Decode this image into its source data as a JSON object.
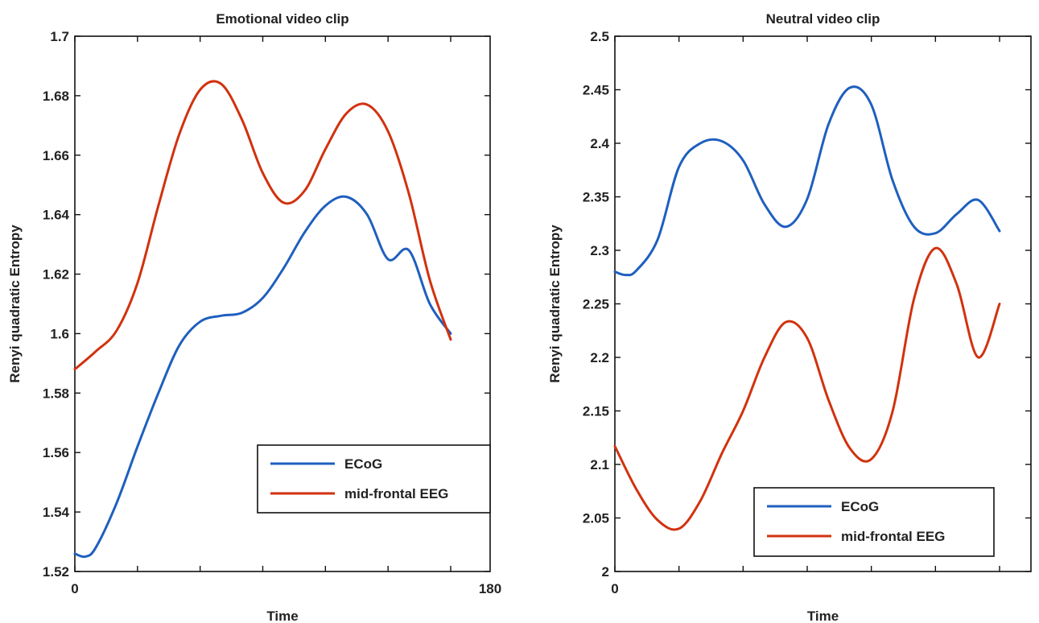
{
  "chart_data": [
    {
      "type": "line",
      "title": "Emotional video clip",
      "xlabel": "Time",
      "ylabel": "Renyi quadratic Entropy",
      "xlim": [
        0,
        180
      ],
      "ylim": [
        1.52,
        1.7
      ],
      "xticks": [
        0,
        180
      ],
      "xtick_labels": [
        "0",
        "180"
      ],
      "minor_xticks": [
        0,
        30,
        60,
        90,
        120,
        150,
        180
      ],
      "yticks": [
        1.52,
        1.54,
        1.56,
        1.58,
        1.6,
        1.62,
        1.64,
        1.66,
        1.68,
        1.7
      ],
      "ytick_labels": [
        "1.52",
        "1.54",
        "1.56",
        "1.58",
        "1.6",
        "1.62",
        "1.64",
        "1.66",
        "1.68",
        "1.7"
      ],
      "legend_position": "bottom-right",
      "series": [
        {
          "name": "ECoG",
          "color": "#1f5fbf",
          "x": [
            0,
            5,
            10,
            20,
            30,
            40,
            50,
            60,
            70,
            80,
            90,
            100,
            110,
            120,
            130,
            140,
            150,
            160,
            170,
            180
          ],
          "y": [
            1.526,
            1.525,
            1.528,
            1.543,
            1.562,
            1.58,
            1.596,
            1.604,
            1.606,
            1.607,
            1.612,
            1.622,
            1.634,
            1.643,
            1.646,
            1.64,
            1.625,
            1.628,
            1.61,
            1.6
          ]
        },
        {
          "name": "mid-frontal EEG",
          "color": "#d1320f",
          "x": [
            0,
            10,
            20,
            30,
            40,
            50,
            60,
            70,
            80,
            90,
            100,
            110,
            120,
            130,
            140,
            150,
            160,
            170,
            180
          ],
          "y": [
            1.588,
            1.594,
            1.601,
            1.617,
            1.643,
            1.667,
            1.682,
            1.684,
            1.672,
            1.654,
            1.644,
            1.648,
            1.662,
            1.674,
            1.677,
            1.668,
            1.647,
            1.618,
            1.598
          ]
        }
      ]
    },
    {
      "type": "line",
      "title": "Neutral video clip",
      "xlabel": "Time",
      "ylabel": "Renyi quadratic Entropy",
      "xlim": [
        0,
        180
      ],
      "ylim": [
        2.0,
        2.5
      ],
      "xticks": [
        0
      ],
      "xtick_labels": [
        "0"
      ],
      "minor_xticks": [
        0,
        30,
        60,
        90,
        120,
        150,
        180
      ],
      "yticks": [
        2.0,
        2.05,
        2.1,
        2.15,
        2.2,
        2.25,
        2.3,
        2.35,
        2.4,
        2.45,
        2.5
      ],
      "ytick_labels": [
        "2",
        "2.05",
        "2.1",
        "2.15",
        "2.2",
        "2.25",
        "2.3",
        "2.35",
        "2.4",
        "2.45",
        "2.5"
      ],
      "legend_position": "bottom-right",
      "series": [
        {
          "name": "ECoG",
          "color": "#1f5fbf",
          "x": [
            0,
            5,
            10,
            20,
            30,
            40,
            50,
            60,
            70,
            80,
            90,
            100,
            110,
            120,
            130,
            140,
            150,
            160,
            170,
            180
          ],
          "y": [
            2.28,
            2.277,
            2.281,
            2.31,
            2.378,
            2.4,
            2.402,
            2.384,
            2.343,
            2.322,
            2.348,
            2.418,
            2.452,
            2.436,
            2.365,
            2.322,
            2.316,
            2.334,
            2.347,
            2.318
          ]
        },
        {
          "name": "mid-frontal EEG",
          "color": "#d1320f",
          "x": [
            0,
            10,
            20,
            30,
            40,
            50,
            60,
            70,
            80,
            90,
            100,
            110,
            120,
            130,
            140,
            150,
            160,
            170,
            180
          ],
          "y": [
            2.117,
            2.077,
            2.048,
            2.04,
            2.066,
            2.11,
            2.15,
            2.2,
            2.233,
            2.218,
            2.16,
            2.115,
            2.105,
            2.15,
            2.255,
            2.302,
            2.268,
            2.2,
            2.25
          ]
        }
      ]
    }
  ]
}
